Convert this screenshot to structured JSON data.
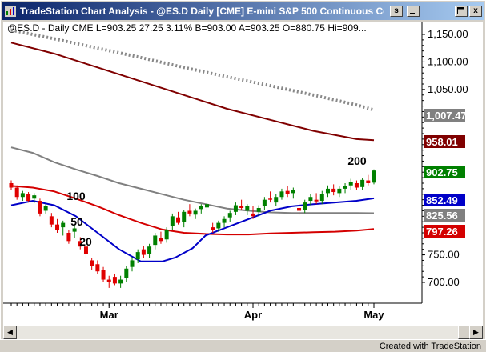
{
  "window": {
    "title": "TradeStation Chart Analysis - @ES.D  Daily  [CME] E-mini S&P 500 Continuous Co...",
    "buttons": {
      "restore": "s",
      "close": "x"
    }
  },
  "status_line": {
    "symbol": "@ES.D - Daily  CME",
    "last": "L=903.25",
    "change": "27.25",
    "pct": "3.11%",
    "bid": "B=903.00",
    "ask": "A=903.25",
    "open": "O=880.75",
    "high": "Hi=909..."
  },
  "footer": "Created with TradeStation",
  "colors": {
    "ma200": "#800000",
    "ma100": "#808080",
    "ma50": "#d40000",
    "ma20": "#0000c8",
    "candle_up": "#008000",
    "candle_down": "#e00000",
    "trend": "#888888"
  },
  "chart_data": {
    "type": "candlestick",
    "symbol": "@ES.D",
    "timeframe": "Daily",
    "x_labels": [
      "Mar",
      "Apr",
      "May"
    ],
    "y_ticks": [
      "1,150.00",
      "1,100.00",
      "1,050.00",
      "750.00",
      "700.00"
    ],
    "ylim": [
      680,
      1170
    ],
    "price_tags": [
      {
        "label": "1,007.47",
        "value": 1007.47,
        "color": "#808080"
      },
      {
        "label": "958.01",
        "value": 958.01,
        "color": "#800000"
      },
      {
        "label": "902.75",
        "value": 902.75,
        "color": "#008000"
      },
      {
        "label": "852.49",
        "value": 852.49,
        "color": "#0000c8"
      },
      {
        "label": "825.56",
        "value": 825.56,
        "color": "#808080"
      },
      {
        "label": "797.26",
        "value": 797.26,
        "color": "#d40000"
      }
    ],
    "ma_labels": [
      {
        "label": "200",
        "value": 200
      },
      {
        "label": "100",
        "value": 100
      },
      {
        "label": "50",
        "value": 50
      },
      {
        "label": "20",
        "value": 20
      }
    ],
    "series": [
      {
        "name": "200",
        "x": [
          0,
          10,
          20,
          30,
          40,
          50,
          60,
          70,
          80,
          84
        ],
        "values": [
          1135,
          1115,
          1090,
          1065,
          1040,
          1015,
          995,
          975,
          960,
          958
        ]
      },
      {
        "name": "100",
        "x": [
          0,
          5,
          10,
          15,
          20,
          25,
          30,
          35,
          40,
          45,
          50,
          55,
          60,
          65,
          70,
          75,
          80,
          84
        ],
        "values": [
          945,
          935,
          918,
          905,
          893,
          880,
          870,
          860,
          850,
          842,
          834,
          830,
          827,
          826,
          826,
          826,
          826,
          825.5
        ]
      },
      {
        "name": "50",
        "x": [
          0,
          5,
          10,
          15,
          20,
          25,
          30,
          35,
          40,
          45,
          50,
          55,
          60,
          65,
          70,
          75,
          80,
          84
        ],
        "values": [
          875,
          872,
          865,
          852,
          838,
          822,
          808,
          796,
          790,
          788,
          787,
          787,
          789,
          790,
          791,
          792,
          794,
          797
        ]
      },
      {
        "name": "20",
        "x": [
          0,
          5,
          10,
          15,
          20,
          25,
          30,
          35,
          38,
          42,
          45,
          50,
          55,
          60,
          65,
          70,
          75,
          80,
          84
        ],
        "values": [
          840,
          848,
          840,
          820,
          790,
          760,
          738,
          738,
          745,
          762,
          785,
          800,
          815,
          830,
          838,
          842,
          845,
          848,
          852.5
        ]
      },
      {
        "name": "trend",
        "x": [
          0,
          10,
          20,
          30,
          40,
          50,
          60,
          70,
          80,
          84
        ],
        "values": [
          1158,
          1142,
          1125,
          1108,
          1090,
          1073,
          1057,
          1040,
          1022,
          1013
        ]
      }
    ],
    "candles": [
      [
        0,
        880,
        885,
        868,
        872
      ],
      [
        1,
        872,
        876,
        850,
        855
      ],
      [
        2,
        855,
        866,
        848,
        862
      ],
      [
        3,
        860,
        864,
        845,
        848
      ],
      [
        4,
        852,
        862,
        844,
        858
      ],
      [
        5,
        848,
        852,
        820,
        825
      ],
      [
        6,
        830,
        842,
        825,
        838
      ],
      [
        7,
        820,
        826,
        800,
        805
      ],
      [
        8,
        805,
        815,
        790,
        795
      ],
      [
        9,
        800,
        812,
        785,
        808
      ],
      [
        10,
        790,
        795,
        770,
        775
      ],
      [
        11,
        792,
        804,
        780,
        798
      ],
      [
        12,
        775,
        782,
        760,
        765
      ],
      [
        13,
        765,
        770,
        745,
        752
      ],
      [
        14,
        740,
        745,
        722,
        730
      ],
      [
        15,
        733,
        740,
        715,
        720
      ],
      [
        16,
        722,
        728,
        700,
        705
      ],
      [
        17,
        705,
        712,
        690,
        700
      ],
      [
        18,
        710,
        716,
        695,
        698
      ],
      [
        19,
        698,
        712,
        690,
        705
      ],
      [
        20,
        708,
        730,
        700,
        725
      ],
      [
        21,
        728,
        746,
        720,
        740
      ],
      [
        22,
        742,
        760,
        735,
        755
      ],
      [
        23,
        760,
        766,
        745,
        750
      ],
      [
        24,
        752,
        770,
        745,
        765
      ],
      [
        25,
        768,
        790,
        760,
        785
      ],
      [
        26,
        780,
        792,
        770,
        775
      ],
      [
        27,
        778,
        800,
        772,
        795
      ],
      [
        28,
        802,
        825,
        795,
        820
      ],
      [
        29,
        818,
        828,
        805,
        808
      ],
      [
        30,
        810,
        832,
        800,
        828
      ],
      [
        31,
        830,
        842,
        820,
        825
      ],
      [
        32,
        823,
        834,
        815,
        830
      ],
      [
        33,
        833,
        842,
        825,
        838
      ],
      [
        34,
        836,
        845,
        830,
        842
      ],
      [
        35,
        800,
        808,
        790,
        795
      ],
      [
        36,
        798,
        812,
        792,
        808
      ],
      [
        37,
        808,
        820,
        800,
        815
      ],
      [
        38,
        818,
        830,
        810,
        826
      ],
      [
        39,
        828,
        845,
        822,
        840
      ],
      [
        40,
        838,
        850,
        832,
        835
      ],
      [
        41,
        830,
        842,
        822,
        838
      ],
      [
        42,
        825,
        838,
        815,
        820
      ],
      [
        43,
        828,
        840,
        820,
        835
      ],
      [
        44,
        838,
        855,
        832,
        850
      ],
      [
        45,
        852,
        865,
        845,
        850
      ],
      [
        46,
        845,
        860,
        838,
        855
      ],
      [
        47,
        855,
        870,
        850,
        865
      ],
      [
        48,
        866,
        875,
        855,
        860
      ],
      [
        49,
        862,
        872,
        852,
        868
      ],
      [
        50,
        835,
        845,
        822,
        830
      ],
      [
        51,
        832,
        850,
        826,
        845
      ],
      [
        52,
        848,
        860,
        840,
        855
      ],
      [
        53,
        850,
        862,
        842,
        847
      ],
      [
        54,
        848,
        866,
        842,
        860
      ],
      [
        55,
        862,
        876,
        855,
        870
      ],
      [
        56,
        870,
        878,
        858,
        864
      ],
      [
        57,
        862,
        874,
        855,
        870
      ],
      [
        58,
        870,
        880,
        862,
        875
      ],
      [
        59,
        876,
        888,
        868,
        882
      ],
      [
        60,
        880,
        885,
        868,
        872
      ],
      [
        61,
        873,
        890,
        868,
        886
      ],
      [
        62,
        885,
        895,
        876,
        880
      ],
      [
        63,
        881,
        905,
        878,
        903
      ]
    ]
  }
}
